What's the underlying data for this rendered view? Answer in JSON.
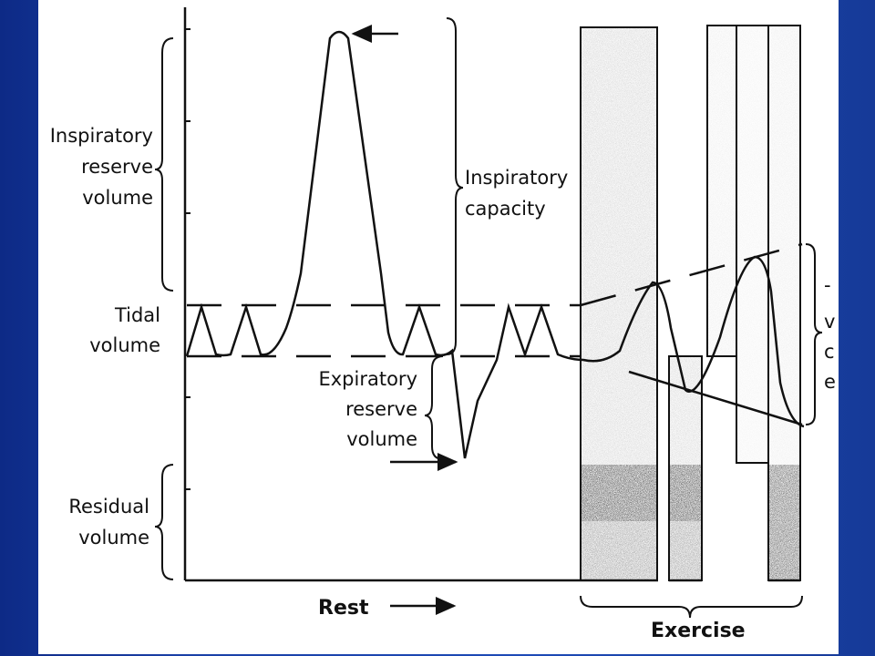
{
  "diagram": {
    "labels": {
      "inspiratory_reserve_volume": [
        "Inspiratory",
        "reserve",
        "volume"
      ],
      "inspiratory_capacity": [
        "Inspiratory",
        "capacity"
      ],
      "tidal_volume": [
        "Tidal",
        "volume"
      ],
      "expiratory_reserve_volume": [
        "Expiratory",
        "reserve",
        "volume"
      ],
      "residual_volume": [
        "Residual",
        "volume"
      ],
      "rest": "Rest",
      "exercise": "Exercise",
      "right_partial": [
        "-",
        "v",
        "c",
        "e"
      ]
    }
  },
  "colors": {
    "slide_background": "#1a3fa6",
    "panel": "#ffffff",
    "ink": "#111111",
    "stipple_light": "#c9c9c9",
    "stipple_mid": "#8a8a8a",
    "stipple_dark": "#333333"
  }
}
